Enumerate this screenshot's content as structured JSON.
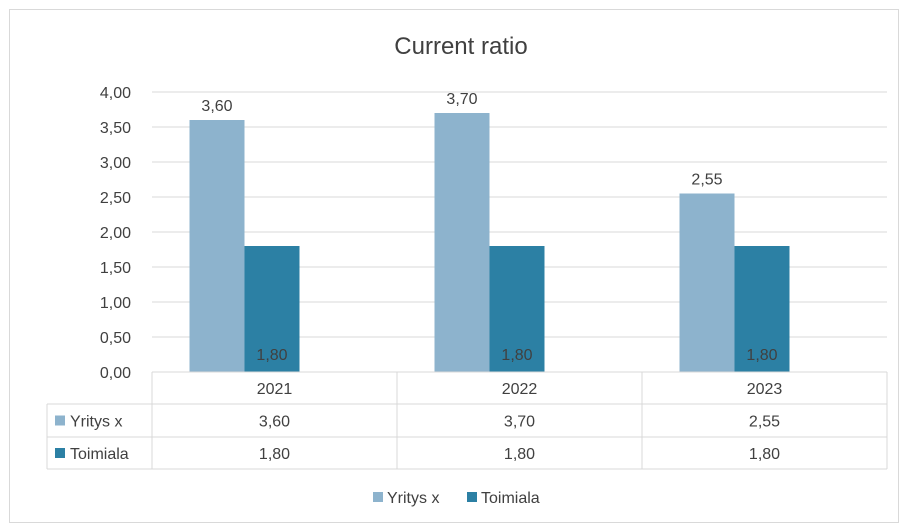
{
  "chart_data": {
    "type": "bar",
    "title": "Current ratio",
    "categories": [
      "2021",
      "2022",
      "2023"
    ],
    "series": [
      {
        "name": "Yritys x",
        "values": [
          3.6,
          3.7,
          2.55
        ],
        "labels": [
          "3,60",
          "3,70",
          "2,55"
        ],
        "color": "#8db3cd"
      },
      {
        "name": "Toimiala",
        "values": [
          1.8,
          1.8,
          1.8
        ],
        "labels": [
          "1,80",
          "1,80",
          "1,80"
        ],
        "color": "#2c80a4"
      }
    ],
    "y_ticks": [
      "0,00",
      "0,50",
      "1,00",
      "1,50",
      "2,00",
      "2,50",
      "3,00",
      "3,50",
      "4,00"
    ],
    "ylim": [
      0,
      4
    ],
    "grid": true,
    "data_table": true,
    "legend_position": "bottom"
  }
}
